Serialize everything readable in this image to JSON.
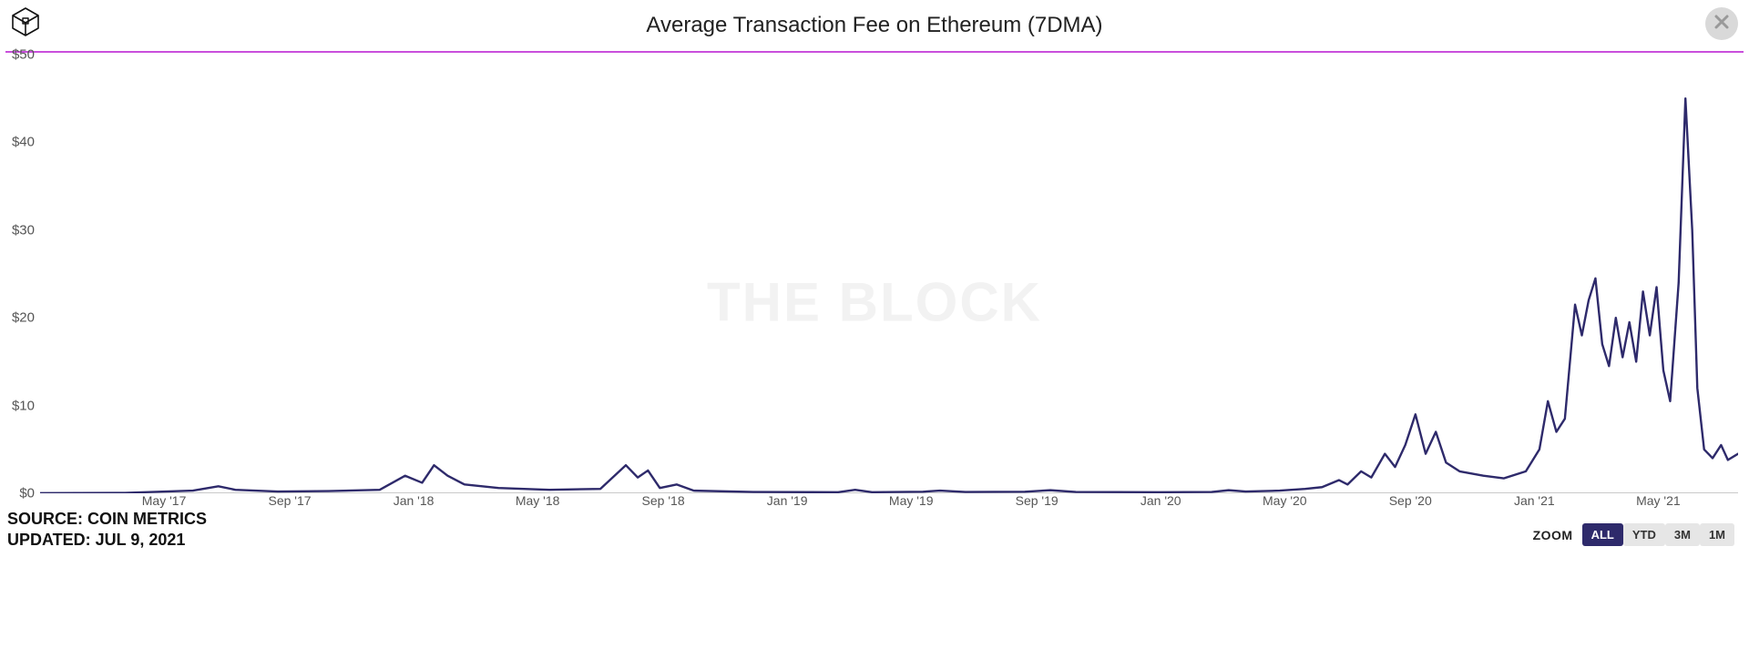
{
  "header": {
    "title": "Average Transaction Fee on Ethereum (7DMA)"
  },
  "watermark": "THE BLOCK",
  "colors": {
    "line": "#2e2a6b",
    "rule": "#c94fdc",
    "grid": "#e9e9e9",
    "bg": "#ffffff",
    "close_bg": "#d9d9d9",
    "close_x": "#999999",
    "zoom_active_bg": "#2e2a6b",
    "zoom_inactive_bg": "#e6e6e6"
  },
  "chart": {
    "type": "line",
    "line_color": "#2e2a6b",
    "line_width": 2.4,
    "background_color": "#ffffff",
    "ylim": [
      0,
      50
    ],
    "ytick_step": 10,
    "y_ticks": [
      "$0",
      "$10",
      "$20",
      "$30",
      "$40",
      "$50"
    ],
    "x_start": "2017-01",
    "x_end": "2021-07",
    "x_ticks": [
      {
        "pos": 0.073,
        "label": "May '17"
      },
      {
        "pos": 0.147,
        "label": "Sep '17"
      },
      {
        "pos": 0.22,
        "label": "Jan '18"
      },
      {
        "pos": 0.293,
        "label": "May '18"
      },
      {
        "pos": 0.367,
        "label": "Sep '18"
      },
      {
        "pos": 0.44,
        "label": "Jan '19"
      },
      {
        "pos": 0.513,
        "label": "May '19"
      },
      {
        "pos": 0.587,
        "label": "Sep '19"
      },
      {
        "pos": 0.66,
        "label": "Jan '20"
      },
      {
        "pos": 0.733,
        "label": "May '20"
      },
      {
        "pos": 0.807,
        "label": "Sep '20"
      },
      {
        "pos": 0.88,
        "label": "Jan '21"
      },
      {
        "pos": 0.953,
        "label": "May '21"
      }
    ],
    "series": [
      {
        "x": 0.0,
        "y": 0.02
      },
      {
        "x": 0.05,
        "y": 0.05
      },
      {
        "x": 0.09,
        "y": 0.3
      },
      {
        "x": 0.105,
        "y": 0.8
      },
      {
        "x": 0.115,
        "y": 0.4
      },
      {
        "x": 0.14,
        "y": 0.2
      },
      {
        "x": 0.17,
        "y": 0.25
      },
      {
        "x": 0.2,
        "y": 0.4
      },
      {
        "x": 0.215,
        "y": 2.0
      },
      {
        "x": 0.225,
        "y": 1.2
      },
      {
        "x": 0.232,
        "y": 3.2
      },
      {
        "x": 0.24,
        "y": 2.0
      },
      {
        "x": 0.25,
        "y": 1.0
      },
      {
        "x": 0.27,
        "y": 0.6
      },
      {
        "x": 0.3,
        "y": 0.4
      },
      {
        "x": 0.33,
        "y": 0.5
      },
      {
        "x": 0.345,
        "y": 3.2
      },
      {
        "x": 0.352,
        "y": 1.8
      },
      {
        "x": 0.358,
        "y": 2.6
      },
      {
        "x": 0.365,
        "y": 0.6
      },
      {
        "x": 0.375,
        "y": 1.0
      },
      {
        "x": 0.385,
        "y": 0.3
      },
      {
        "x": 0.42,
        "y": 0.15
      },
      {
        "x": 0.47,
        "y": 0.12
      },
      {
        "x": 0.48,
        "y": 0.4
      },
      {
        "x": 0.49,
        "y": 0.12
      },
      {
        "x": 0.52,
        "y": 0.18
      },
      {
        "x": 0.53,
        "y": 0.3
      },
      {
        "x": 0.545,
        "y": 0.15
      },
      {
        "x": 0.58,
        "y": 0.18
      },
      {
        "x": 0.595,
        "y": 0.35
      },
      {
        "x": 0.61,
        "y": 0.15
      },
      {
        "x": 0.66,
        "y": 0.12
      },
      {
        "x": 0.69,
        "y": 0.15
      },
      {
        "x": 0.7,
        "y": 0.35
      },
      {
        "x": 0.71,
        "y": 0.2
      },
      {
        "x": 0.73,
        "y": 0.3
      },
      {
        "x": 0.745,
        "y": 0.5
      },
      {
        "x": 0.755,
        "y": 0.7
      },
      {
        "x": 0.765,
        "y": 1.5
      },
      {
        "x": 0.77,
        "y": 1.0
      },
      {
        "x": 0.778,
        "y": 2.5
      },
      {
        "x": 0.784,
        "y": 1.8
      },
      {
        "x": 0.792,
        "y": 4.5
      },
      {
        "x": 0.798,
        "y": 3.0
      },
      {
        "x": 0.804,
        "y": 5.5
      },
      {
        "x": 0.81,
        "y": 9.0
      },
      {
        "x": 0.816,
        "y": 4.5
      },
      {
        "x": 0.822,
        "y": 7.0
      },
      {
        "x": 0.828,
        "y": 3.5
      },
      {
        "x": 0.836,
        "y": 2.5
      },
      {
        "x": 0.85,
        "y": 2.0
      },
      {
        "x": 0.862,
        "y": 1.7
      },
      {
        "x": 0.875,
        "y": 2.5
      },
      {
        "x": 0.883,
        "y": 5.0
      },
      {
        "x": 0.888,
        "y": 10.5
      },
      {
        "x": 0.893,
        "y": 7.0
      },
      {
        "x": 0.898,
        "y": 8.5
      },
      {
        "x": 0.904,
        "y": 21.5
      },
      {
        "x": 0.908,
        "y": 18.0
      },
      {
        "x": 0.912,
        "y": 22.0
      },
      {
        "x": 0.916,
        "y": 24.5
      },
      {
        "x": 0.92,
        "y": 17.0
      },
      {
        "x": 0.924,
        "y": 14.5
      },
      {
        "x": 0.928,
        "y": 20.0
      },
      {
        "x": 0.932,
        "y": 15.5
      },
      {
        "x": 0.936,
        "y": 19.5
      },
      {
        "x": 0.94,
        "y": 15.0
      },
      {
        "x": 0.944,
        "y": 23.0
      },
      {
        "x": 0.948,
        "y": 18.0
      },
      {
        "x": 0.952,
        "y": 23.5
      },
      {
        "x": 0.956,
        "y": 14.0
      },
      {
        "x": 0.96,
        "y": 10.5
      },
      {
        "x": 0.965,
        "y": 24.0
      },
      {
        "x": 0.969,
        "y": 45.0
      },
      {
        "x": 0.973,
        "y": 30.0
      },
      {
        "x": 0.976,
        "y": 12.0
      },
      {
        "x": 0.98,
        "y": 5.0
      },
      {
        "x": 0.985,
        "y": 4.0
      },
      {
        "x": 0.99,
        "y": 5.5
      },
      {
        "x": 0.994,
        "y": 3.8
      },
      {
        "x": 1.0,
        "y": 4.5
      }
    ]
  },
  "footer": {
    "source_label": "SOURCE: COIN METRICS",
    "updated_label": "UPDATED: JUL 9, 2021"
  },
  "zoom": {
    "label": "ZOOM",
    "buttons": [
      {
        "id": "all",
        "label": "ALL",
        "active": true
      },
      {
        "id": "ytd",
        "label": "YTD",
        "active": false
      },
      {
        "id": "3m",
        "label": "3M",
        "active": false
      },
      {
        "id": "1m",
        "label": "1M",
        "active": false
      }
    ]
  }
}
